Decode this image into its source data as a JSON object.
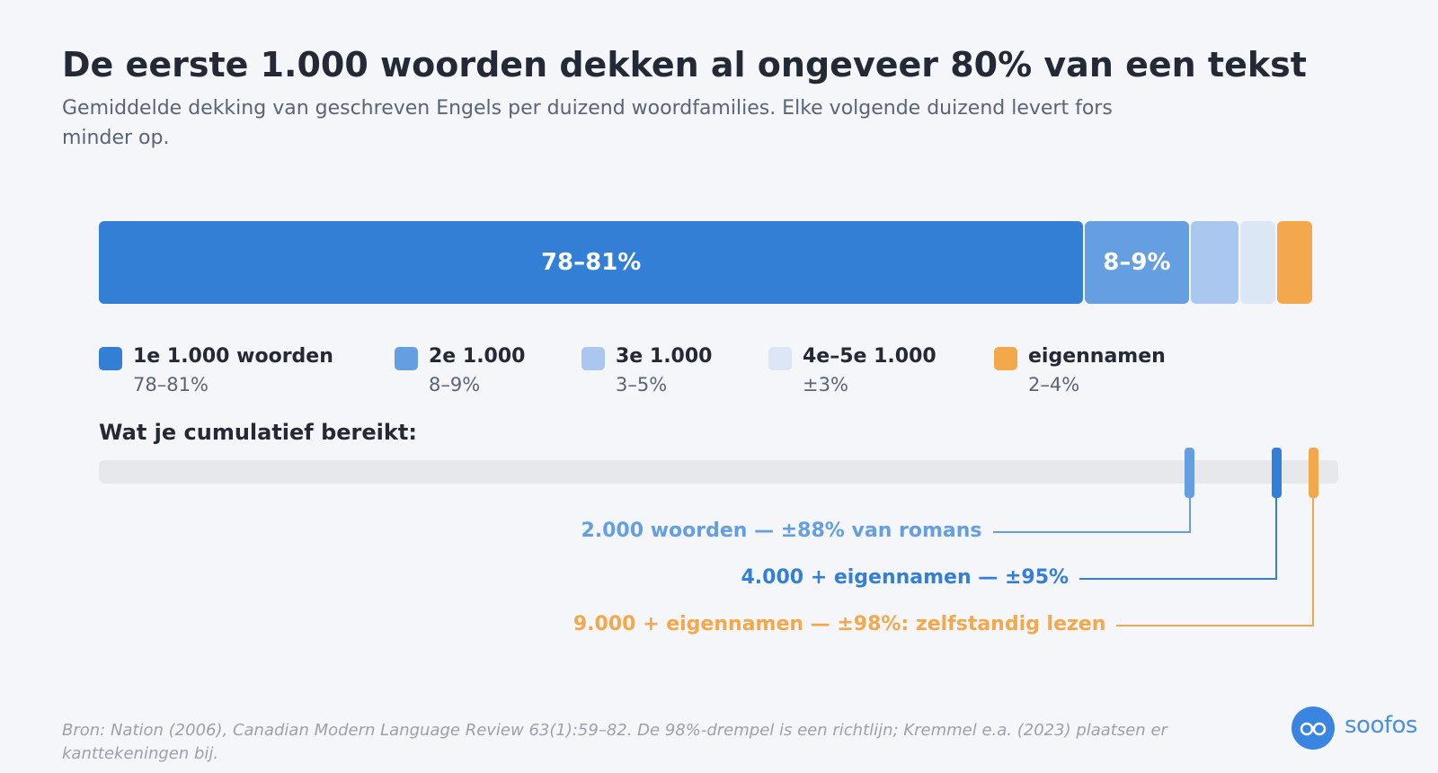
{
  "title": "De eerste 1.000 woorden dekken al ongeveer 80% van een tekst",
  "subtitle": "Gemiddelde dekking van geschreven Engels per duizend woordfamilies. Elke volgende duizend levert fors minder op.",
  "chart_data": {
    "type": "bar",
    "orientation": "horizontal-stacked",
    "xlim": [
      0,
      100
    ],
    "segments": [
      {
        "name": "1e 1.000 woorden",
        "value_label": "78–81%",
        "value": 79.5,
        "color": "#337fd6",
        "show_label": "78–81%"
      },
      {
        "name": "2e 1.000",
        "value_label": "8–9%",
        "value": 8.5,
        "color": "#659fe2",
        "show_label": "8–9%"
      },
      {
        "name": "3e 1.000",
        "value_label": "3–5%",
        "value": 4,
        "color": "#aac7ef",
        "show_label": ""
      },
      {
        "name": "4e–5e 1.000",
        "value_label": "±3%",
        "value": 3,
        "color": "#dce7f6",
        "show_label": ""
      },
      {
        "name": "eigennamen",
        "value_label": "2–4%",
        "value": 3,
        "color": "#f4a84c",
        "show_label": ""
      }
    ],
    "cumulative_title": "Wat je cumulatief bereikt:",
    "cumulative_markers": [
      {
        "value": 88,
        "label": "2.000 woorden — ±88% van romans",
        "color": "#659fe2"
      },
      {
        "value": 95,
        "label": "4.000 + eigennamen — ±95%",
        "color": "#337fd6"
      },
      {
        "value": 98,
        "label": "9.000 + eigennamen — ±98%: zelfstandig lezen",
        "color": "#f4a84c"
      }
    ]
  },
  "source": "Bron: Nation (2006), Canadian Modern Language Review 63(1):59–82. De 98%-drempel is een richtlijn; Kremmel e.a. (2023) plaatsen er kanttekeningen bij.",
  "logo": {
    "text": "soofos",
    "icon": "glasses-icon"
  }
}
